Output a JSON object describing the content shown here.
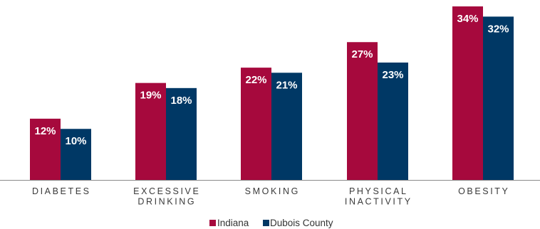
{
  "chart_data": {
    "type": "bar",
    "categories": [
      [
        "DIABETES"
      ],
      [
        "EXCESSIVE",
        "DRINKING"
      ],
      [
        "SMOKING"
      ],
      [
        "PHYSICAL",
        "INACTIVITY"
      ],
      [
        "OBESITY"
      ]
    ],
    "series": [
      {
        "name": "Indiana",
        "color": "#a6093d",
        "values": [
          12,
          19,
          22,
          27,
          34
        ],
        "labels": [
          "12%",
          "19%",
          "22%",
          "27%",
          "34%"
        ]
      },
      {
        "name": "Dubois County",
        "color": "#003865",
        "values": [
          10,
          18,
          21,
          23,
          32
        ],
        "labels": [
          "10%",
          "18%",
          "21%",
          "23%",
          "32%"
        ]
      }
    ],
    "ylim": [
      0,
      34
    ],
    "grid": false,
    "legend": "bottom-center",
    "axis_color": "#8a8a8a"
  }
}
